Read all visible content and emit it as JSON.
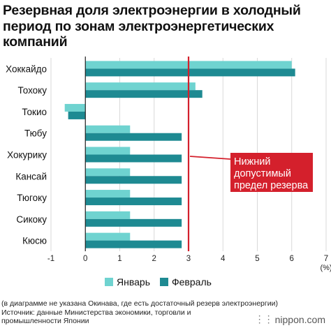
{
  "title_lines": [
    "Резервная доля электроэнергии в холодный",
    "период по зонам электроэнергетических",
    "компаний"
  ],
  "chart_data": {
    "type": "bar",
    "orientation": "horizontal",
    "categories": [
      "Хоккайдо",
      "Тохоку",
      "Токио",
      "Тюбу",
      "Хокурику",
      "Кансай",
      "Тюгоку",
      "Сикоку",
      "Кюсю"
    ],
    "series": [
      {
        "name": "Январь",
        "color": "#6fd3d0",
        "values": [
          6.0,
          3.2,
          -0.6,
          1.3,
          1.3,
          1.3,
          1.3,
          1.3,
          1.3
        ]
      },
      {
        "name": "Февраль",
        "color": "#1e8a92",
        "values": [
          6.1,
          3.4,
          -0.5,
          2.8,
          2.8,
          2.8,
          2.8,
          2.8,
          2.8
        ]
      }
    ],
    "xlim": [
      -1,
      7
    ],
    "xticks": [
      "-1",
      "0",
      "1",
      "2",
      "3",
      "4",
      "5",
      "6",
      "7"
    ],
    "unit_label": "(%)",
    "reference_line": {
      "value": 3,
      "color": "#d4202c",
      "label_lines": [
        "Нижний",
        "допустимый",
        "предел резерва"
      ]
    },
    "grid": true,
    "legend_position": "bottom"
  },
  "footer_lines": [
    "(в диаграмме не указана Окинава, где есть достаточный резерв электроэнергии)",
    "Источник: данные Министерства экономики, торговли и",
    "промышленности Японии"
  ],
  "brand": "nippon.com"
}
